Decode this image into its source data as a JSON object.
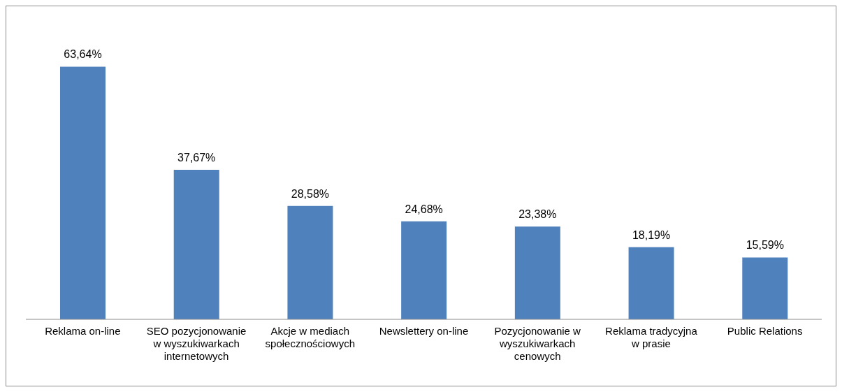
{
  "chart_data": {
    "type": "bar",
    "categories": [
      "Reklama on-line",
      "SEO pozycjonowanie w wyszukiwarkach internetowych",
      "Akcje w mediach społecznościowych",
      "Newslettery on-line",
      "Pozycjonowanie w wyszukiwarkach cenowych",
      "Reklama tradycyjna w prasie",
      "Public Relations"
    ],
    "values": [
      63.64,
      37.67,
      28.58,
      24.68,
      23.38,
      18.19,
      15.59
    ],
    "value_labels": [
      "63,64%",
      "37,67%",
      "28,58%",
      "24,68%",
      "23,38%",
      "18,19%",
      "15,59%"
    ],
    "color": "#4f81bd"
  }
}
